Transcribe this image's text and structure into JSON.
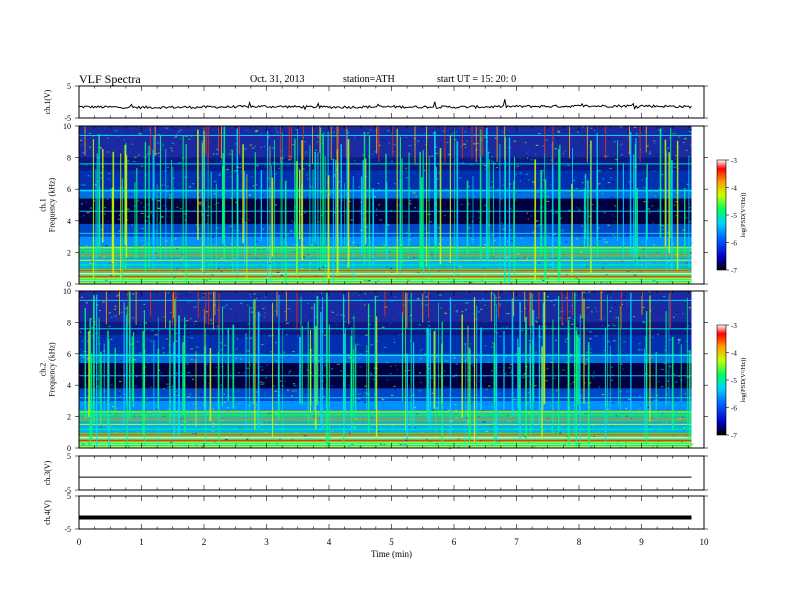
{
  "header": {
    "title": "VLF  Spectra",
    "date": "Oct. 31, 2013",
    "station": "station=ATH",
    "start": "start  UT  =   15: 20: 0"
  },
  "colors": {
    "background": "#ffffff",
    "trace": "#000000",
    "colormap": [
      "#000000",
      "#0000c8",
      "#0060ff",
      "#00d0ff",
      "#00ff60",
      "#c8ff00",
      "#ffa000",
      "#ff0000",
      "#ffffff"
    ]
  },
  "chart_data": [
    {
      "type": "line",
      "panel": "ch1",
      "ylabel": "ch.1(V)",
      "ylim": [
        -5,
        5
      ],
      "yticks": [
        "5",
        "-5"
      ],
      "x": [
        0,
        1,
        2,
        3,
        4,
        5,
        6,
        7,
        8,
        9,
        9.8
      ],
      "values": [
        -1.5,
        -1.7,
        -1.6,
        -1.4,
        -1.6,
        -1.5,
        -1.6,
        -1.4,
        -1.3,
        -1.2,
        -1.5
      ]
    },
    {
      "type": "heatmap",
      "panel": "ch1-spectrogram",
      "ylabel": "ch.1\nFrequency (kHz)",
      "ylim": [
        0,
        10
      ],
      "xlim": [
        0,
        10
      ],
      "yticks": [
        "0",
        "2",
        "4",
        "6",
        "8",
        "10"
      ],
      "colorbar": {
        "label": "log(PSD(V²/Hz))",
        "ticks": [
          "-3",
          "-4",
          "-5",
          "-6",
          "-7"
        ],
        "range": [
          -7,
          -3
        ]
      }
    },
    {
      "type": "heatmap",
      "panel": "ch2-spectrogram",
      "ylabel": "ch.2\nFrequency (kHz)",
      "ylim": [
        0,
        10
      ],
      "xlim": [
        0,
        10
      ],
      "yticks": [
        "0",
        "2",
        "4",
        "6",
        "8",
        "10"
      ],
      "colorbar": {
        "label": "log(PSD(V²/Hz))",
        "ticks": [
          "-3",
          "-4",
          "-5",
          "-6",
          "-7"
        ],
        "range": [
          -7,
          -3
        ]
      }
    },
    {
      "type": "line",
      "panel": "ch3",
      "ylabel": "ch.3(V)",
      "ylim": [
        -5,
        5
      ],
      "yticks": [
        "5",
        "-5"
      ],
      "x": [
        0,
        9.8
      ],
      "values": [
        -1.2,
        -1.2
      ]
    },
    {
      "type": "line",
      "panel": "ch4",
      "ylabel": "ch.4(V)",
      "ylim": [
        -5,
        5
      ],
      "yticks": [
        "5",
        "-5"
      ],
      "x": [
        0,
        9.8
      ],
      "values": [
        -1.5,
        -1.5
      ]
    }
  ],
  "xaxis": {
    "label": "Time  (min)",
    "ticks": [
      "0",
      "1",
      "2",
      "3",
      "4",
      "5",
      "6",
      "7",
      "8",
      "9",
      "10"
    ],
    "xlim": [
      0,
      10
    ]
  }
}
